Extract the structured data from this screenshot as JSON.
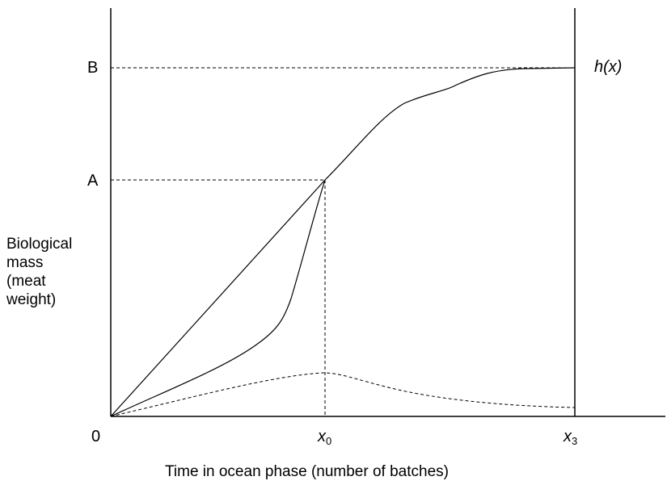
{
  "labels": {
    "origin": "0",
    "level_a": "A",
    "level_b": "B",
    "x0_main": "x",
    "x0_sub": "0",
    "x3_main": "x",
    "x3_sub": "3",
    "curve_h": "h(x)"
  },
  "axes": {
    "ylabel_lines": [
      "Biological",
      "mass",
      "(meat",
      "weight)"
    ],
    "xlabel": "Time in ocean phase (number of batches)"
  }
}
